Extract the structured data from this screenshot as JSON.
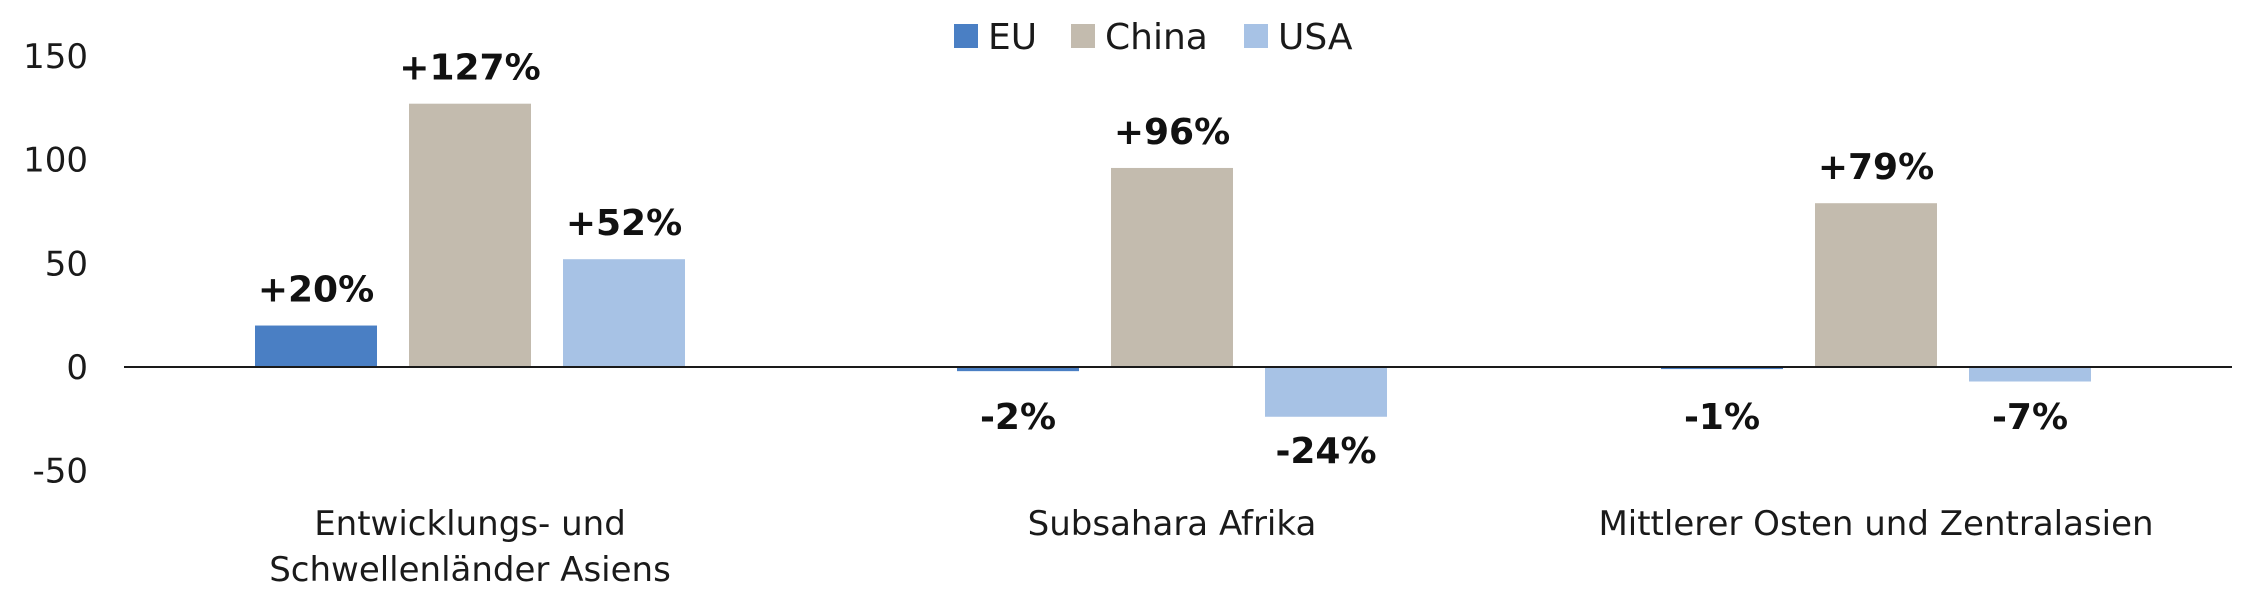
{
  "chart_data": {
    "type": "bar",
    "categories": [
      [
        "Entwicklungs- und",
        "Schwellenländer Asiens"
      ],
      [
        "Subsahara Afrika"
      ],
      [
        "Mittlerer Osten und Zentralasien"
      ]
    ],
    "series": [
      {
        "name": "EU",
        "color": "#4a7fc4",
        "values": [
          20,
          -2,
          -1
        ],
        "labels": [
          "+20%",
          "-2%",
          "-1%"
        ]
      },
      {
        "name": "China",
        "color": "#c3bbae",
        "values": [
          127,
          96,
          79
        ],
        "labels": [
          "+127%",
          "+96%",
          "+79%"
        ]
      },
      {
        "name": "USA",
        "color": "#a7c2e5",
        "values": [
          52,
          -24,
          -7
        ],
        "labels": [
          "+52%",
          "-24%",
          "-7%"
        ]
      }
    ],
    "yticks": [
      "150",
      "100",
      "50",
      "0",
      "-50"
    ],
    "ylim": [
      -50,
      150
    ],
    "grid": false,
    "legend_position": "top-center"
  }
}
